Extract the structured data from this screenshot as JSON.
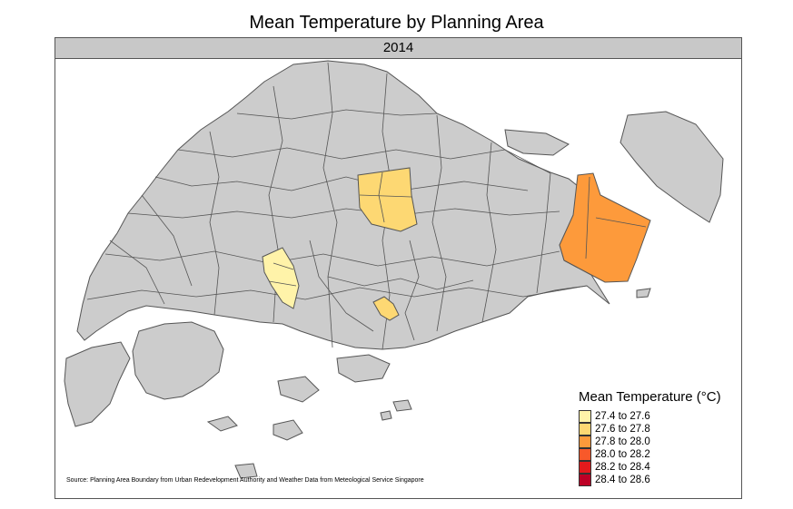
{
  "title": "Mean Temperature by Planning Area",
  "panel": {
    "label": "2014"
  },
  "map": {
    "base_fill": "#cccccc",
    "border_color": "#555555",
    "highlighted_areas": [
      {
        "name_hint": "north-central",
        "bin": "27.6 to 27.8",
        "color": "#fdd873"
      },
      {
        "name_hint": "west",
        "bin": "27.4 to 27.6",
        "color": "#fff3a9"
      },
      {
        "name_hint": "central",
        "bin": "27.6 to 27.8",
        "color": "#fdd873"
      },
      {
        "name_hint": "east",
        "bin": "27.8 to 28.0",
        "color": "#fd9a3b"
      }
    ]
  },
  "legend": {
    "title": "Mean Temperature (°C)",
    "items": [
      {
        "label": "27.4 to 27.6",
        "color": "#fff3a9"
      },
      {
        "label": "27.6 to 27.8",
        "color": "#fdd873"
      },
      {
        "label": "27.8 to 28.0",
        "color": "#fd9a3b"
      },
      {
        "label": "28.0 to 28.2",
        "color": "#f8592a"
      },
      {
        "label": "28.2 to 28.4",
        "color": "#e31a1c"
      },
      {
        "label": "28.4 to 28.6",
        "color": "#bd0026"
      }
    ]
  },
  "source": "Source: Planning Area Boundary from Urban Redevelopment Authority and Weather Data from Meteological Service Singapore"
}
